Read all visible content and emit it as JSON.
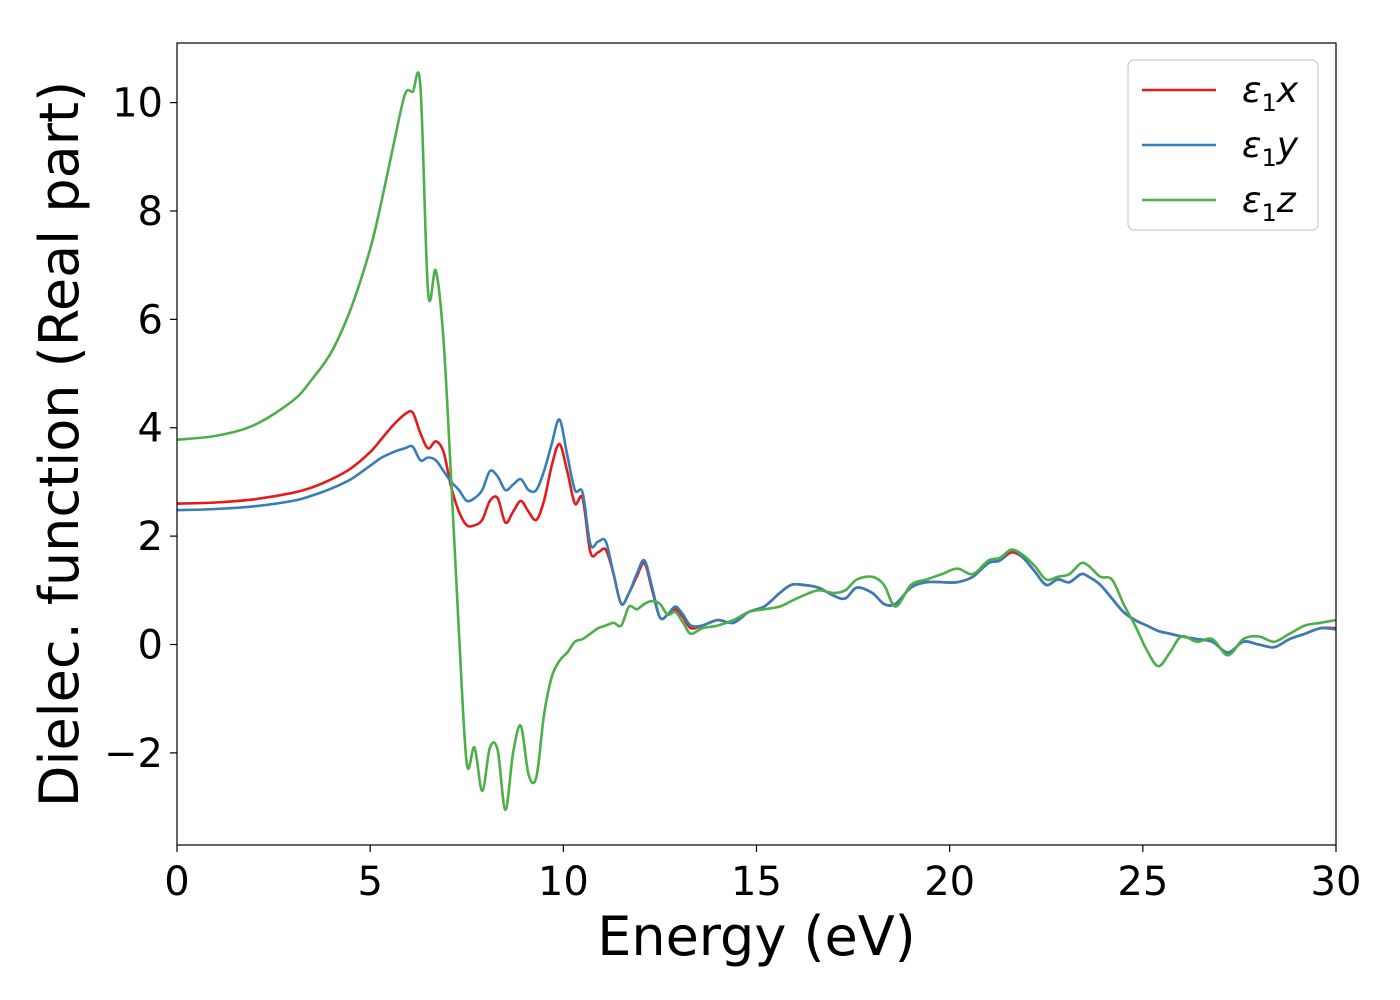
{
  "chart_data": {
    "type": "line",
    "xlabel": "Energy (eV)",
    "ylabel": "Dielec. function (Real part)",
    "xlim": [
      0,
      30
    ],
    "ylim": [
      -3.7,
      11.1
    ],
    "xticks": [
      0,
      5,
      10,
      15,
      20,
      25,
      30
    ],
    "xtick_labels": [
      "0",
      "5",
      "10",
      "15",
      "20",
      "25",
      "30"
    ],
    "yticks": [
      -2,
      0,
      2,
      4,
      6,
      8,
      10
    ],
    "ytick_labels": [
      "−2",
      "0",
      "2",
      "4",
      "6",
      "8",
      "10"
    ],
    "grid": false,
    "legend_position": "top-right",
    "series": [
      {
        "name": "ε₁x",
        "legend_main": "ε",
        "legend_sub": "1",
        "legend_suffix": "x",
        "color": "#e41a1c",
        "x": [
          0,
          1,
          2,
          3,
          3.5,
          4,
          4.5,
          5,
          5.3,
          5.6,
          5.9,
          6.1,
          6.3,
          6.5,
          6.7,
          6.9,
          7.1,
          7.3,
          7.5,
          7.7,
          7.9,
          8.1,
          8.3,
          8.5,
          8.7,
          8.9,
          9.1,
          9.3,
          9.5,
          9.7,
          9.9,
          10.1,
          10.3,
          10.5,
          10.7,
          10.9,
          11.1,
          11.3,
          11.5,
          11.7,
          11.9,
          12.1,
          12.3,
          12.5,
          12.7,
          12.9,
          13.1,
          13.3,
          13.6,
          14.0,
          14.4,
          14.8,
          15.2,
          15.6,
          15.9,
          16.2,
          16.6,
          17.0,
          17.3,
          17.6,
          18.0,
          18.3,
          18.6,
          19.0,
          19.4,
          19.8,
          20.2,
          20.6,
          21.0,
          21.3,
          21.6,
          21.9,
          22.2,
          22.5,
          22.8,
          23.1,
          23.4,
          23.6,
          23.9,
          24.2,
          24.5,
          24.8,
          25.1,
          25.4,
          25.7,
          26.0,
          26.4,
          26.8,
          27.2,
          27.6,
          28.0,
          28.4,
          28.8,
          29.2,
          29.6,
          30.0
        ],
        "y": [
          2.6,
          2.62,
          2.68,
          2.8,
          2.9,
          3.05,
          3.25,
          3.55,
          3.8,
          4.05,
          4.25,
          4.28,
          3.9,
          3.62,
          3.75,
          3.55,
          2.9,
          2.45,
          2.2,
          2.2,
          2.3,
          2.65,
          2.7,
          2.25,
          2.45,
          2.65,
          2.45,
          2.3,
          2.65,
          3.3,
          3.7,
          3.2,
          2.6,
          2.7,
          1.7,
          1.7,
          1.75,
          1.3,
          0.75,
          0.95,
          1.25,
          1.5,
          1.0,
          0.5,
          0.55,
          0.65,
          0.5,
          0.3,
          0.35,
          0.45,
          0.4,
          0.6,
          0.7,
          0.95,
          1.1,
          1.1,
          1.05,
          0.9,
          0.85,
          1.05,
          0.95,
          0.75,
          0.75,
          1.05,
          1.15,
          1.15,
          1.15,
          1.25,
          1.5,
          1.55,
          1.7,
          1.6,
          1.35,
          1.1,
          1.2,
          1.15,
          1.3,
          1.25,
          1.1,
          0.85,
          0.6,
          0.45,
          0.35,
          0.25,
          0.2,
          0.15,
          0.1,
          0.05,
          -0.15,
          0.05,
          0.0,
          -0.05,
          0.1,
          0.2,
          0.3,
          0.3
        ]
      },
      {
        "name": "ε₁y",
        "legend_main": "ε",
        "legend_sub": "1",
        "legend_suffix": "y",
        "color": "#377eb8",
        "x": [
          0,
          1,
          2,
          3,
          3.5,
          4,
          4.5,
          5,
          5.3,
          5.6,
          5.9,
          6.1,
          6.3,
          6.5,
          6.7,
          6.9,
          7.1,
          7.3,
          7.5,
          7.7,
          7.9,
          8.1,
          8.3,
          8.5,
          8.7,
          8.9,
          9.1,
          9.3,
          9.5,
          9.7,
          9.9,
          10.1,
          10.3,
          10.5,
          10.7,
          10.9,
          11.1,
          11.3,
          11.5,
          11.7,
          11.9,
          12.1,
          12.3,
          12.5,
          12.7,
          12.9,
          13.1,
          13.3,
          13.6,
          14.0,
          14.4,
          14.8,
          15.2,
          15.6,
          15.9,
          16.2,
          16.6,
          17.0,
          17.3,
          17.6,
          18.0,
          18.3,
          18.6,
          19.0,
          19.4,
          19.8,
          20.2,
          20.6,
          21.0,
          21.3,
          21.6,
          21.9,
          22.2,
          22.5,
          22.8,
          23.1,
          23.4,
          23.6,
          23.9,
          24.2,
          24.5,
          24.8,
          25.1,
          25.4,
          25.7,
          26.0,
          26.4,
          26.8,
          27.2,
          27.6,
          28.0,
          28.4,
          28.8,
          29.2,
          29.6,
          30.0
        ],
        "y": [
          2.48,
          2.5,
          2.55,
          2.65,
          2.75,
          2.88,
          3.05,
          3.3,
          3.45,
          3.55,
          3.62,
          3.65,
          3.4,
          3.45,
          3.4,
          3.2,
          3.0,
          2.85,
          2.65,
          2.7,
          2.85,
          3.2,
          3.1,
          2.85,
          2.95,
          3.05,
          2.85,
          2.85,
          3.2,
          3.7,
          4.15,
          3.5,
          2.85,
          2.8,
          1.85,
          1.9,
          1.9,
          1.3,
          0.75,
          0.95,
          1.3,
          1.55,
          1.05,
          0.5,
          0.55,
          0.7,
          0.55,
          0.35,
          0.35,
          0.45,
          0.4,
          0.6,
          0.7,
          0.95,
          1.1,
          1.1,
          1.05,
          0.9,
          0.85,
          1.05,
          0.95,
          0.75,
          0.75,
          1.05,
          1.15,
          1.15,
          1.15,
          1.25,
          1.5,
          1.55,
          1.75,
          1.6,
          1.35,
          1.1,
          1.2,
          1.15,
          1.3,
          1.25,
          1.1,
          0.85,
          0.6,
          0.45,
          0.35,
          0.25,
          0.2,
          0.15,
          0.1,
          0.05,
          -0.15,
          0.05,
          0.0,
          -0.05,
          0.1,
          0.2,
          0.3,
          0.28
        ]
      },
      {
        "name": "ε₁z",
        "legend_main": "ε",
        "legend_sub": "1",
        "legend_suffix": "z",
        "color": "#4daf4a",
        "x": [
          0,
          1,
          2,
          3,
          3.5,
          4,
          4.5,
          5,
          5.3,
          5.6,
          5.9,
          6.1,
          6.3,
          6.5,
          6.7,
          6.9,
          7.1,
          7.3,
          7.5,
          7.7,
          7.9,
          8.1,
          8.3,
          8.5,
          8.7,
          8.9,
          9.1,
          9.3,
          9.5,
          9.7,
          9.9,
          10.1,
          10.3,
          10.5,
          10.7,
          10.9,
          11.1,
          11.3,
          11.5,
          11.7,
          11.9,
          12.1,
          12.3,
          12.5,
          12.7,
          12.9,
          13.1,
          13.3,
          13.6,
          14.0,
          14.4,
          14.8,
          15.2,
          15.6,
          15.9,
          16.2,
          16.6,
          17.0,
          17.3,
          17.6,
          18.0,
          18.3,
          18.6,
          19.0,
          19.4,
          19.8,
          20.2,
          20.6,
          21.0,
          21.3,
          21.6,
          21.9,
          22.2,
          22.5,
          22.8,
          23.1,
          23.4,
          23.6,
          23.9,
          24.2,
          24.5,
          24.8,
          25.1,
          25.4,
          25.7,
          26.0,
          26.4,
          26.8,
          27.2,
          27.6,
          28.0,
          28.4,
          28.8,
          29.2,
          29.6,
          30.0
        ],
        "y": [
          3.78,
          3.85,
          4.05,
          4.5,
          4.9,
          5.4,
          6.2,
          7.3,
          8.2,
          9.2,
          10.15,
          10.2,
          10.3,
          6.5,
          6.9,
          5.6,
          3.0,
          0.2,
          -2.2,
          -1.9,
          -2.7,
          -1.9,
          -1.95,
          -3.05,
          -2.0,
          -1.5,
          -2.4,
          -2.45,
          -1.3,
          -0.6,
          -0.3,
          -0.15,
          0.05,
          0.1,
          0.2,
          0.3,
          0.35,
          0.4,
          0.35,
          0.7,
          0.65,
          0.75,
          0.8,
          0.75,
          0.55,
          0.6,
          0.4,
          0.2,
          0.3,
          0.35,
          0.45,
          0.6,
          0.65,
          0.7,
          0.8,
          0.9,
          1.0,
          0.95,
          1.0,
          1.2,
          1.25,
          1.1,
          0.7,
          1.1,
          1.2,
          1.3,
          1.4,
          1.3,
          1.55,
          1.6,
          1.75,
          1.65,
          1.45,
          1.2,
          1.25,
          1.3,
          1.5,
          1.45,
          1.25,
          1.2,
          0.75,
          0.35,
          -0.1,
          -0.4,
          -0.15,
          0.15,
          0.05,
          0.1,
          -0.2,
          0.1,
          0.15,
          0.05,
          0.2,
          0.35,
          0.4,
          0.45
        ]
      }
    ]
  }
}
